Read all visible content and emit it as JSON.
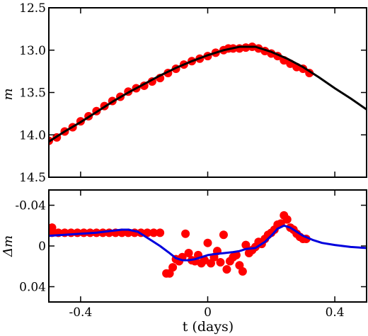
{
  "chart_data": [
    {
      "type": "line",
      "panel": "top",
      "ylabel": "m",
      "xlim": [
        -0.5,
        0.5
      ],
      "ylim": [
        14.5,
        12.5
      ],
      "y_inverted": true,
      "yticks": [
        12.5,
        13.0,
        13.5,
        14.0,
        14.5
      ],
      "ytick_labels": [
        "12.5",
        "13.0",
        "13.5",
        "14.0",
        "14.5"
      ],
      "xticks": [
        -0.4,
        0,
        0.4
      ],
      "show_xtick_labels": false,
      "colors": {
        "points": "#ff0000",
        "model": "#000000"
      },
      "series": [
        {
          "kind": "scatter",
          "x": [
            -0.5,
            -0.475,
            -0.45,
            -0.425,
            -0.4,
            -0.375,
            -0.35,
            -0.325,
            -0.3,
            -0.275,
            -0.25,
            -0.225,
            -0.2,
            -0.175,
            -0.15,
            -0.125,
            -0.1,
            -0.075,
            -0.05,
            -0.025,
            0.0,
            0.025,
            0.05,
            0.065,
            0.08,
            0.1,
            0.12,
            0.14,
            0.16,
            0.18,
            0.2,
            0.22,
            0.24,
            0.26,
            0.28,
            0.3,
            0.32
          ],
          "y": [
            14.07,
            14.03,
            13.96,
            13.91,
            13.84,
            13.78,
            13.72,
            13.66,
            13.6,
            13.55,
            13.49,
            13.45,
            13.42,
            13.37,
            13.33,
            13.27,
            13.22,
            13.17,
            13.13,
            13.1,
            13.07,
            13.03,
            13.0,
            12.98,
            12.98,
            12.98,
            12.97,
            12.96,
            12.98,
            13.01,
            13.04,
            13.07,
            13.12,
            13.16,
            13.2,
            13.22,
            13.27
          ]
        },
        {
          "kind": "line",
          "x": [
            -0.5,
            -0.45,
            -0.4,
            -0.35,
            -0.3,
            -0.25,
            -0.2,
            -0.15,
            -0.1,
            -0.05,
            0.0,
            0.05,
            0.1,
            0.15,
            0.2,
            0.25,
            0.3,
            0.35,
            0.4,
            0.45,
            0.5
          ],
          "y": [
            14.08,
            13.96,
            13.85,
            13.73,
            13.61,
            13.5,
            13.4,
            13.3,
            13.21,
            13.13,
            13.06,
            13.0,
            12.96,
            12.96,
            13.02,
            13.1,
            13.2,
            13.32,
            13.45,
            13.57,
            13.7
          ]
        }
      ]
    },
    {
      "type": "line",
      "panel": "bottom",
      "ylabel": "Δm",
      "xlabel": "t (days)",
      "xlim": [
        -0.5,
        0.5
      ],
      "ylim": [
        0.055,
        -0.055
      ],
      "y_inverted": true,
      "yticks": [
        -0.04,
        0,
        0.04
      ],
      "ytick_labels": [
        "-0.04",
        "0",
        "0.04"
      ],
      "xticks": [
        -0.4,
        0,
        0.4
      ],
      "xtick_labels": [
        "-0.4",
        "0",
        "0.4"
      ],
      "colors": {
        "points": "#ff0000",
        "model": "#0000dd"
      },
      "series": [
        {
          "kind": "scatter",
          "x": [
            -0.49,
            -0.49,
            -0.47,
            -0.45,
            -0.43,
            -0.41,
            -0.39,
            -0.37,
            -0.35,
            -0.33,
            -0.31,
            -0.29,
            -0.27,
            -0.25,
            -0.23,
            -0.21,
            -0.19,
            -0.17,
            -0.15,
            -0.13,
            -0.12,
            -0.11,
            -0.1,
            -0.09,
            -0.08,
            -0.07,
            -0.06,
            -0.05,
            -0.04,
            -0.03,
            -0.02,
            -0.01,
            0.0,
            0.01,
            0.02,
            0.03,
            0.04,
            0.05,
            0.06,
            0.07,
            0.08,
            0.09,
            0.1,
            0.11,
            0.12,
            0.13,
            0.14,
            0.15,
            0.16,
            0.17,
            0.18,
            0.19,
            0.2,
            0.21,
            0.22,
            0.23,
            0.24,
            0.25,
            0.26,
            0.27,
            0.28,
            0.29,
            0.3,
            0.31
          ],
          "y": [
            -0.018,
            -0.013,
            -0.013,
            -0.013,
            -0.013,
            -0.013,
            -0.013,
            -0.013,
            -0.013,
            -0.013,
            -0.013,
            -0.013,
            -0.013,
            -0.013,
            -0.013,
            -0.013,
            -0.013,
            -0.013,
            -0.013,
            0.027,
            0.027,
            0.021,
            0.013,
            0.015,
            0.011,
            -0.012,
            0.007,
            0.014,
            0.015,
            0.009,
            0.017,
            0.014,
            -0.003,
            0.017,
            0.011,
            0.005,
            0.016,
            -0.011,
            0.023,
            0.015,
            0.011,
            0.009,
            0.019,
            0.025,
            -0.001,
            0.007,
            0.004,
            0.001,
            -0.004,
            -0.002,
            -0.007,
            -0.011,
            -0.013,
            -0.016,
            -0.021,
            -0.022,
            -0.03,
            -0.026,
            -0.018,
            -0.016,
            -0.012,
            -0.009,
            -0.007,
            -0.007
          ]
        },
        {
          "kind": "line",
          "x": [
            -0.5,
            -0.45,
            -0.4,
            -0.35,
            -0.3,
            -0.27,
            -0.25,
            -0.22,
            -0.2,
            -0.17,
            -0.15,
            -0.12,
            -0.1,
            -0.08,
            -0.06,
            -0.04,
            -0.02,
            0.0,
            0.02,
            0.05,
            0.08,
            0.1,
            0.12,
            0.15,
            0.18,
            0.2,
            0.22,
            0.24,
            0.26,
            0.28,
            0.3,
            0.33,
            0.36,
            0.4,
            0.45,
            0.5
          ],
          "y": [
            -0.01,
            -0.011,
            -0.012,
            -0.013,
            -0.015,
            -0.016,
            -0.016,
            -0.014,
            -0.01,
            -0.004,
            0.0,
            0.007,
            0.012,
            0.014,
            0.014,
            0.013,
            0.011,
            0.009,
            0.008,
            0.007,
            0.006,
            0.005,
            0.003,
            0.002,
            -0.004,
            -0.01,
            -0.017,
            -0.02,
            -0.018,
            -0.014,
            -0.01,
            -0.006,
            -0.003,
            -0.001,
            0.001,
            0.002
          ]
        }
      ]
    }
  ]
}
